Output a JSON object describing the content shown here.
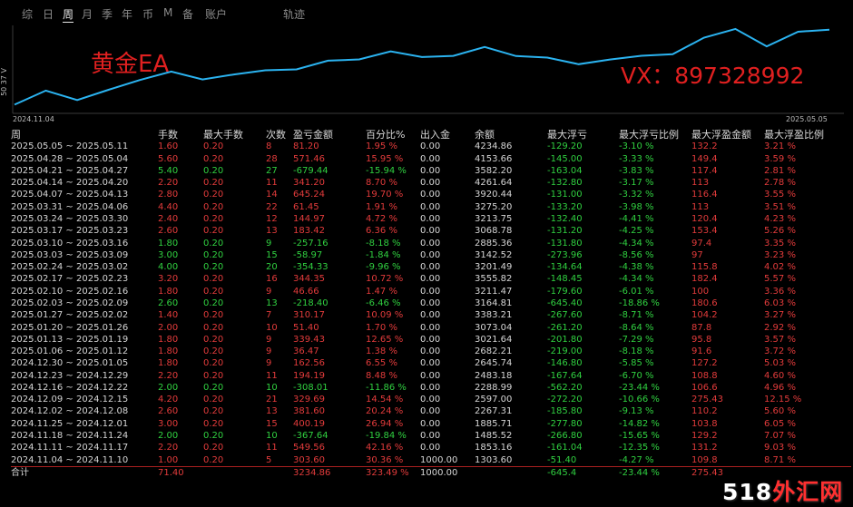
{
  "tabs": [
    {
      "label": "综",
      "active": false
    },
    {
      "label": "日",
      "active": false
    },
    {
      "label": "周",
      "active": true
    },
    {
      "label": "月",
      "active": false
    },
    {
      "label": "季",
      "active": false
    },
    {
      "label": "年",
      "active": false
    },
    {
      "label": "币",
      "active": false
    },
    {
      "label": "M",
      "active": false
    },
    {
      "label": "备",
      "active": false
    },
    {
      "label": "账户",
      "active": false
    },
    {
      "label": "轨迹",
      "active": false
    }
  ],
  "chart": {
    "watermark_ea": "黄金EA",
    "watermark_vx": "VX：897328992",
    "y_axis_label": "50 37 V",
    "start_date": "2024.11.04",
    "end_date": "2025.05.05",
    "line_color": "#2bb3f0",
    "balance_points": [
      1303.6,
      1853.16,
      1485.52,
      1885.71,
      2267.31,
      2597.0,
      2288.99,
      2483.18,
      2645.74,
      2682.21,
      3021.64,
      3073.04,
      3383.21,
      3164.81,
      3211.47,
      3555.82,
      3201.49,
      3142.52,
      2885.36,
      3068.78,
      3213.75,
      3275.2,
      3920.44,
      4261.64,
      3582.2,
      4153.66,
      4234.86
    ]
  },
  "table": {
    "headers": [
      "周",
      "手数",
      "最大手数",
      "次数",
      "盈亏金额",
      "百分比%",
      "出入金",
      "余额",
      "最大浮亏",
      "最大浮亏比例",
      "最大浮盈金额",
      "最大浮盈比例"
    ],
    "rows": [
      {
        "sign": "pos",
        "cells": [
          "2025.05.05 ~ 2025.05.11",
          "1.60",
          "0.20",
          "8",
          "81.20",
          "1.95 %",
          "0.00",
          "4234.86",
          "-129.20",
          "-3.10 %",
          "132.2",
          "3.21 %"
        ]
      },
      {
        "sign": "pos",
        "cells": [
          "2025.04.28 ~ 2025.05.04",
          "5.60",
          "0.20",
          "28",
          "571.46",
          "15.95 %",
          "0.00",
          "4153.66",
          "-145.00",
          "-3.33 %",
          "149.4",
          "3.59 %"
        ]
      },
      {
        "sign": "neg",
        "cells": [
          "2025.04.21 ~ 2025.04.27",
          "5.40",
          "0.20",
          "27",
          "-679.44",
          "-15.94 %",
          "0.00",
          "3582.20",
          "-163.04",
          "-3.83 %",
          "117.4",
          "2.81 %"
        ]
      },
      {
        "sign": "pos",
        "cells": [
          "2025.04.14 ~ 2025.04.20",
          "2.20",
          "0.20",
          "11",
          "341.20",
          "8.70 %",
          "0.00",
          "4261.64",
          "-132.80",
          "-3.17 %",
          "113",
          "2.78 %"
        ]
      },
      {
        "sign": "pos",
        "cells": [
          "2025.04.07 ~ 2025.04.13",
          "2.80",
          "0.20",
          "14",
          "645.24",
          "19.70 %",
          "0.00",
          "3920.44",
          "-131.00",
          "-3.32 %",
          "116.4",
          "3.55 %"
        ]
      },
      {
        "sign": "pos",
        "cells": [
          "2025.03.31 ~ 2025.04.06",
          "4.40",
          "0.20",
          "22",
          "61.45",
          "1.91 %",
          "0.00",
          "3275.20",
          "-133.20",
          "-3.98 %",
          "113",
          "3.51 %"
        ]
      },
      {
        "sign": "pos",
        "cells": [
          "2025.03.24 ~ 2025.03.30",
          "2.40",
          "0.20",
          "12",
          "144.97",
          "4.72 %",
          "0.00",
          "3213.75",
          "-132.40",
          "-4.41 %",
          "120.4",
          "4.23 %"
        ]
      },
      {
        "sign": "pos",
        "cells": [
          "2025.03.17 ~ 2025.03.23",
          "2.60",
          "0.20",
          "13",
          "183.42",
          "6.36 %",
          "0.00",
          "3068.78",
          "-131.20",
          "-4.25 %",
          "153.4",
          "5.26 %"
        ]
      },
      {
        "sign": "neg",
        "cells": [
          "2025.03.10 ~ 2025.03.16",
          "1.80",
          "0.20",
          "9",
          "-257.16",
          "-8.18 %",
          "0.00",
          "2885.36",
          "-131.80",
          "-4.34 %",
          "97.4",
          "3.35 %"
        ]
      },
      {
        "sign": "neg",
        "cells": [
          "2025.03.03 ~ 2025.03.09",
          "3.00",
          "0.20",
          "15",
          "-58.97",
          "-1.84 %",
          "0.00",
          "3142.52",
          "-273.96",
          "-8.56 %",
          "97",
          "3.23 %"
        ]
      },
      {
        "sign": "neg",
        "cells": [
          "2025.02.24 ~ 2025.03.02",
          "4.00",
          "0.20",
          "20",
          "-354.33",
          "-9.96 %",
          "0.00",
          "3201.49",
          "-134.64",
          "-4.38 %",
          "115.8",
          "4.02 %"
        ]
      },
      {
        "sign": "pos",
        "cells": [
          "2025.02.17 ~ 2025.02.23",
          "3.20",
          "0.20",
          "16",
          "344.35",
          "10.72 %",
          "0.00",
          "3555.82",
          "-148.45",
          "-4.34 %",
          "182.4",
          "5.57 %"
        ]
      },
      {
        "sign": "pos",
        "cells": [
          "2025.02.10 ~ 2025.02.16",
          "1.80",
          "0.20",
          "9",
          "46.66",
          "1.47 %",
          "0.00",
          "3211.47",
          "-179.60",
          "-6.01 %",
          "100",
          "3.36 %"
        ]
      },
      {
        "sign": "neg",
        "cells": [
          "2025.02.03 ~ 2025.02.09",
          "2.60",
          "0.20",
          "13",
          "-218.40",
          "-6.46 %",
          "0.00",
          "3164.81",
          "-645.40",
          "-18.86 %",
          "180.6",
          "6.03 %"
        ]
      },
      {
        "sign": "pos",
        "cells": [
          "2025.01.27 ~ 2025.02.02",
          "1.40",
          "0.20",
          "7",
          "310.17",
          "10.09 %",
          "0.00",
          "3383.21",
          "-267.60",
          "-8.71 %",
          "104.2",
          "3.27 %"
        ]
      },
      {
        "sign": "pos",
        "cells": [
          "2025.01.20 ~ 2025.01.26",
          "2.00",
          "0.20",
          "10",
          "51.40",
          "1.70 %",
          "0.00",
          "3073.04",
          "-261.20",
          "-8.64 %",
          "87.8",
          "2.92 %"
        ]
      },
      {
        "sign": "pos",
        "cells": [
          "2025.01.13 ~ 2025.01.19",
          "1.80",
          "0.20",
          "9",
          "339.43",
          "12.65 %",
          "0.00",
          "3021.64",
          "-201.80",
          "-7.29 %",
          "95.8",
          "3.57 %"
        ]
      },
      {
        "sign": "pos",
        "cells": [
          "2025.01.06 ~ 2025.01.12",
          "1.80",
          "0.20",
          "9",
          "36.47",
          "1.38 %",
          "0.00",
          "2682.21",
          "-219.00",
          "-8.18 %",
          "91.6",
          "3.72 %"
        ]
      },
      {
        "sign": "pos",
        "cells": [
          "2024.12.30 ~ 2025.01.05",
          "1.80",
          "0.20",
          "9",
          "162.56",
          "6.55 %",
          "0.00",
          "2645.74",
          "-146.80",
          "-5.85 %",
          "127.2",
          "5.03 %"
        ]
      },
      {
        "sign": "pos",
        "cells": [
          "2024.12.23 ~ 2024.12.29",
          "2.20",
          "0.20",
          "11",
          "194.19",
          "8.48 %",
          "0.00",
          "2483.18",
          "-167.64",
          "-6.70 %",
          "108.8",
          "4.60 %"
        ]
      },
      {
        "sign": "neg",
        "cells": [
          "2024.12.16 ~ 2024.12.22",
          "2.00",
          "0.20",
          "10",
          "-308.01",
          "-11.86 %",
          "0.00",
          "2288.99",
          "-562.20",
          "-23.44 %",
          "106.6",
          "4.96 %"
        ]
      },
      {
        "sign": "pos",
        "cells": [
          "2024.12.09 ~ 2024.12.15",
          "4.20",
          "0.20",
          "21",
          "329.69",
          "14.54 %",
          "0.00",
          "2597.00",
          "-272.20",
          "-10.66 %",
          "275.43",
          "12.15 %"
        ]
      },
      {
        "sign": "pos",
        "cells": [
          "2024.12.02 ~ 2024.12.08",
          "2.60",
          "0.20",
          "13",
          "381.60",
          "20.24 %",
          "0.00",
          "2267.31",
          "-185.80",
          "-9.13 %",
          "110.2",
          "5.60 %"
        ]
      },
      {
        "sign": "pos",
        "cells": [
          "2024.11.25 ~ 2024.12.01",
          "3.00",
          "0.20",
          "15",
          "400.19",
          "26.94 %",
          "0.00",
          "1885.71",
          "-277.80",
          "-14.82 %",
          "103.8",
          "6.05 %"
        ]
      },
      {
        "sign": "neg",
        "cells": [
          "2024.11.18 ~ 2024.11.24",
          "2.00",
          "0.20",
          "10",
          "-367.64",
          "-19.84 %",
          "0.00",
          "1485.52",
          "-266.80",
          "-15.65 %",
          "129.2",
          "7.07 %"
        ]
      },
      {
        "sign": "pos",
        "cells": [
          "2024.11.11 ~ 2024.11.17",
          "2.20",
          "0.20",
          "11",
          "549.56",
          "42.16 %",
          "0.00",
          "1853.16",
          "-161.04",
          "-12.35 %",
          "131.2",
          "9.03 %"
        ]
      },
      {
        "sign": "pos",
        "cells": [
          "2024.11.04 ~ 2024.11.10",
          "1.00",
          "0.20",
          "5",
          "303.60",
          "30.36 %",
          "1000.00",
          "1303.60",
          "-51.40",
          "-4.27 %",
          "109.8",
          "8.71 %"
        ]
      }
    ],
    "total": [
      "合计",
      "71.40",
      "",
      "",
      "3234.86",
      "323.49 %",
      "1000.00",
      "",
      "-645.4",
      "-23.44 %",
      "275.43",
      ""
    ]
  },
  "logo": {
    "text_a": "518",
    "text_b": "外汇网"
  }
}
